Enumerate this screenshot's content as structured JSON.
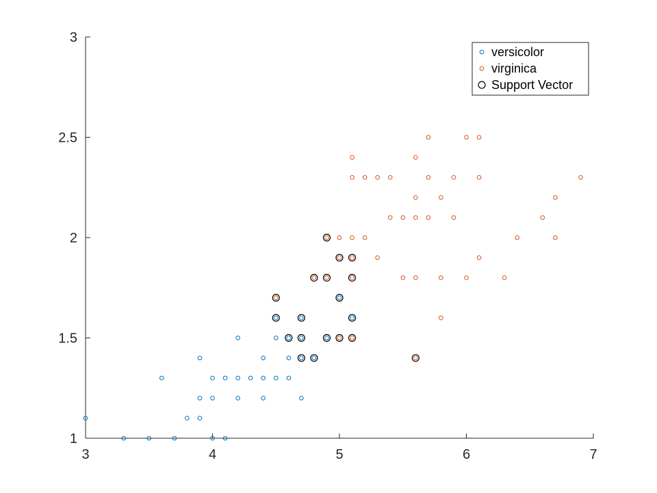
{
  "chart_data": {
    "type": "scatter",
    "title": "",
    "xlabel": "",
    "ylabel": "",
    "xlim": [
      3,
      7
    ],
    "ylim": [
      1,
      3
    ],
    "xticks": [
      3,
      4,
      5,
      6,
      7
    ],
    "yticks": [
      1,
      1.5,
      2,
      2.5,
      3
    ],
    "xtick_labels": [
      "3",
      "4",
      "5",
      "6",
      "7"
    ],
    "ytick_labels": [
      "1",
      "1.5",
      "2",
      "2.5",
      "3"
    ],
    "grid": false,
    "legend_position": "top-right",
    "series": [
      {
        "name": "versicolor",
        "color": "#0072BD",
        "marker": "circle",
        "points": [
          [
            3.0,
            1.1
          ],
          [
            3.3,
            1.0
          ],
          [
            3.5,
            1.0
          ],
          [
            3.7,
            1.0
          ],
          [
            4.0,
            1.0
          ],
          [
            4.1,
            1.0
          ],
          [
            3.8,
            1.1
          ],
          [
            3.9,
            1.1
          ],
          [
            3.9,
            1.2
          ],
          [
            4.0,
            1.2
          ],
          [
            4.2,
            1.2
          ],
          [
            4.4,
            1.2
          ],
          [
            4.7,
            1.2
          ],
          [
            3.6,
            1.3
          ],
          [
            4.0,
            1.3
          ],
          [
            4.1,
            1.3
          ],
          [
            4.2,
            1.3
          ],
          [
            4.3,
            1.3
          ],
          [
            4.4,
            1.3
          ],
          [
            4.5,
            1.3
          ],
          [
            4.6,
            1.3
          ],
          [
            3.9,
            1.4
          ],
          [
            4.4,
            1.4
          ],
          [
            4.6,
            1.4
          ],
          [
            4.7,
            1.4
          ],
          [
            4.8,
            1.4
          ],
          [
            4.2,
            1.5
          ],
          [
            4.5,
            1.5
          ],
          [
            4.6,
            1.5
          ],
          [
            4.7,
            1.5
          ],
          [
            4.9,
            1.5
          ],
          [
            4.5,
            1.6
          ],
          [
            4.7,
            1.6
          ],
          [
            5.1,
            1.6
          ],
          [
            5.0,
            1.7
          ]
        ]
      },
      {
        "name": "virginica",
        "color": "#D95319",
        "marker": "circle",
        "points": [
          [
            5.6,
            1.4
          ],
          [
            5.0,
            1.5
          ],
          [
            5.1,
            1.5
          ],
          [
            5.8,
            1.6
          ],
          [
            4.5,
            1.7
          ],
          [
            4.8,
            1.8
          ],
          [
            4.9,
            1.8
          ],
          [
            5.1,
            1.8
          ],
          [
            5.5,
            1.8
          ],
          [
            5.6,
            1.8
          ],
          [
            5.8,
            1.8
          ],
          [
            6.0,
            1.8
          ],
          [
            6.3,
            1.8
          ],
          [
            5.0,
            1.9
          ],
          [
            5.1,
            1.9
          ],
          [
            5.3,
            1.9
          ],
          [
            6.1,
            1.9
          ],
          [
            4.9,
            2.0
          ],
          [
            5.0,
            2.0
          ],
          [
            5.1,
            2.0
          ],
          [
            5.2,
            2.0
          ],
          [
            6.4,
            2.0
          ],
          [
            6.7,
            2.0
          ],
          [
            5.4,
            2.1
          ],
          [
            5.5,
            2.1
          ],
          [
            5.6,
            2.1
          ],
          [
            5.7,
            2.1
          ],
          [
            5.9,
            2.1
          ],
          [
            6.6,
            2.1
          ],
          [
            5.6,
            2.2
          ],
          [
            5.8,
            2.2
          ],
          [
            6.7,
            2.2
          ],
          [
            5.1,
            2.3
          ],
          [
            5.2,
            2.3
          ],
          [
            5.3,
            2.3
          ],
          [
            5.4,
            2.3
          ],
          [
            5.7,
            2.3
          ],
          [
            5.9,
            2.3
          ],
          [
            6.1,
            2.3
          ],
          [
            6.9,
            2.3
          ],
          [
            5.1,
            2.4
          ],
          [
            5.6,
            2.4
          ],
          [
            5.7,
            2.5
          ],
          [
            6.0,
            2.5
          ],
          [
            6.1,
            2.5
          ]
        ]
      },
      {
        "name": "Support Vector",
        "color": "#000000",
        "marker": "circle-open",
        "points": [
          [
            4.5,
            1.6
          ],
          [
            4.7,
            1.6
          ],
          [
            5.1,
            1.6
          ],
          [
            5.0,
            1.7
          ],
          [
            4.6,
            1.5
          ],
          [
            4.7,
            1.5
          ],
          [
            4.9,
            1.5
          ],
          [
            4.7,
            1.4
          ],
          [
            4.8,
            1.4
          ],
          [
            5.6,
            1.4
          ],
          [
            5.0,
            1.5
          ],
          [
            5.1,
            1.5
          ],
          [
            4.5,
            1.7
          ],
          [
            4.8,
            1.8
          ],
          [
            4.9,
            1.8
          ],
          [
            5.1,
            1.8
          ],
          [
            5.0,
            1.9
          ],
          [
            5.1,
            1.9
          ],
          [
            4.9,
            2.0
          ]
        ]
      }
    ]
  }
}
